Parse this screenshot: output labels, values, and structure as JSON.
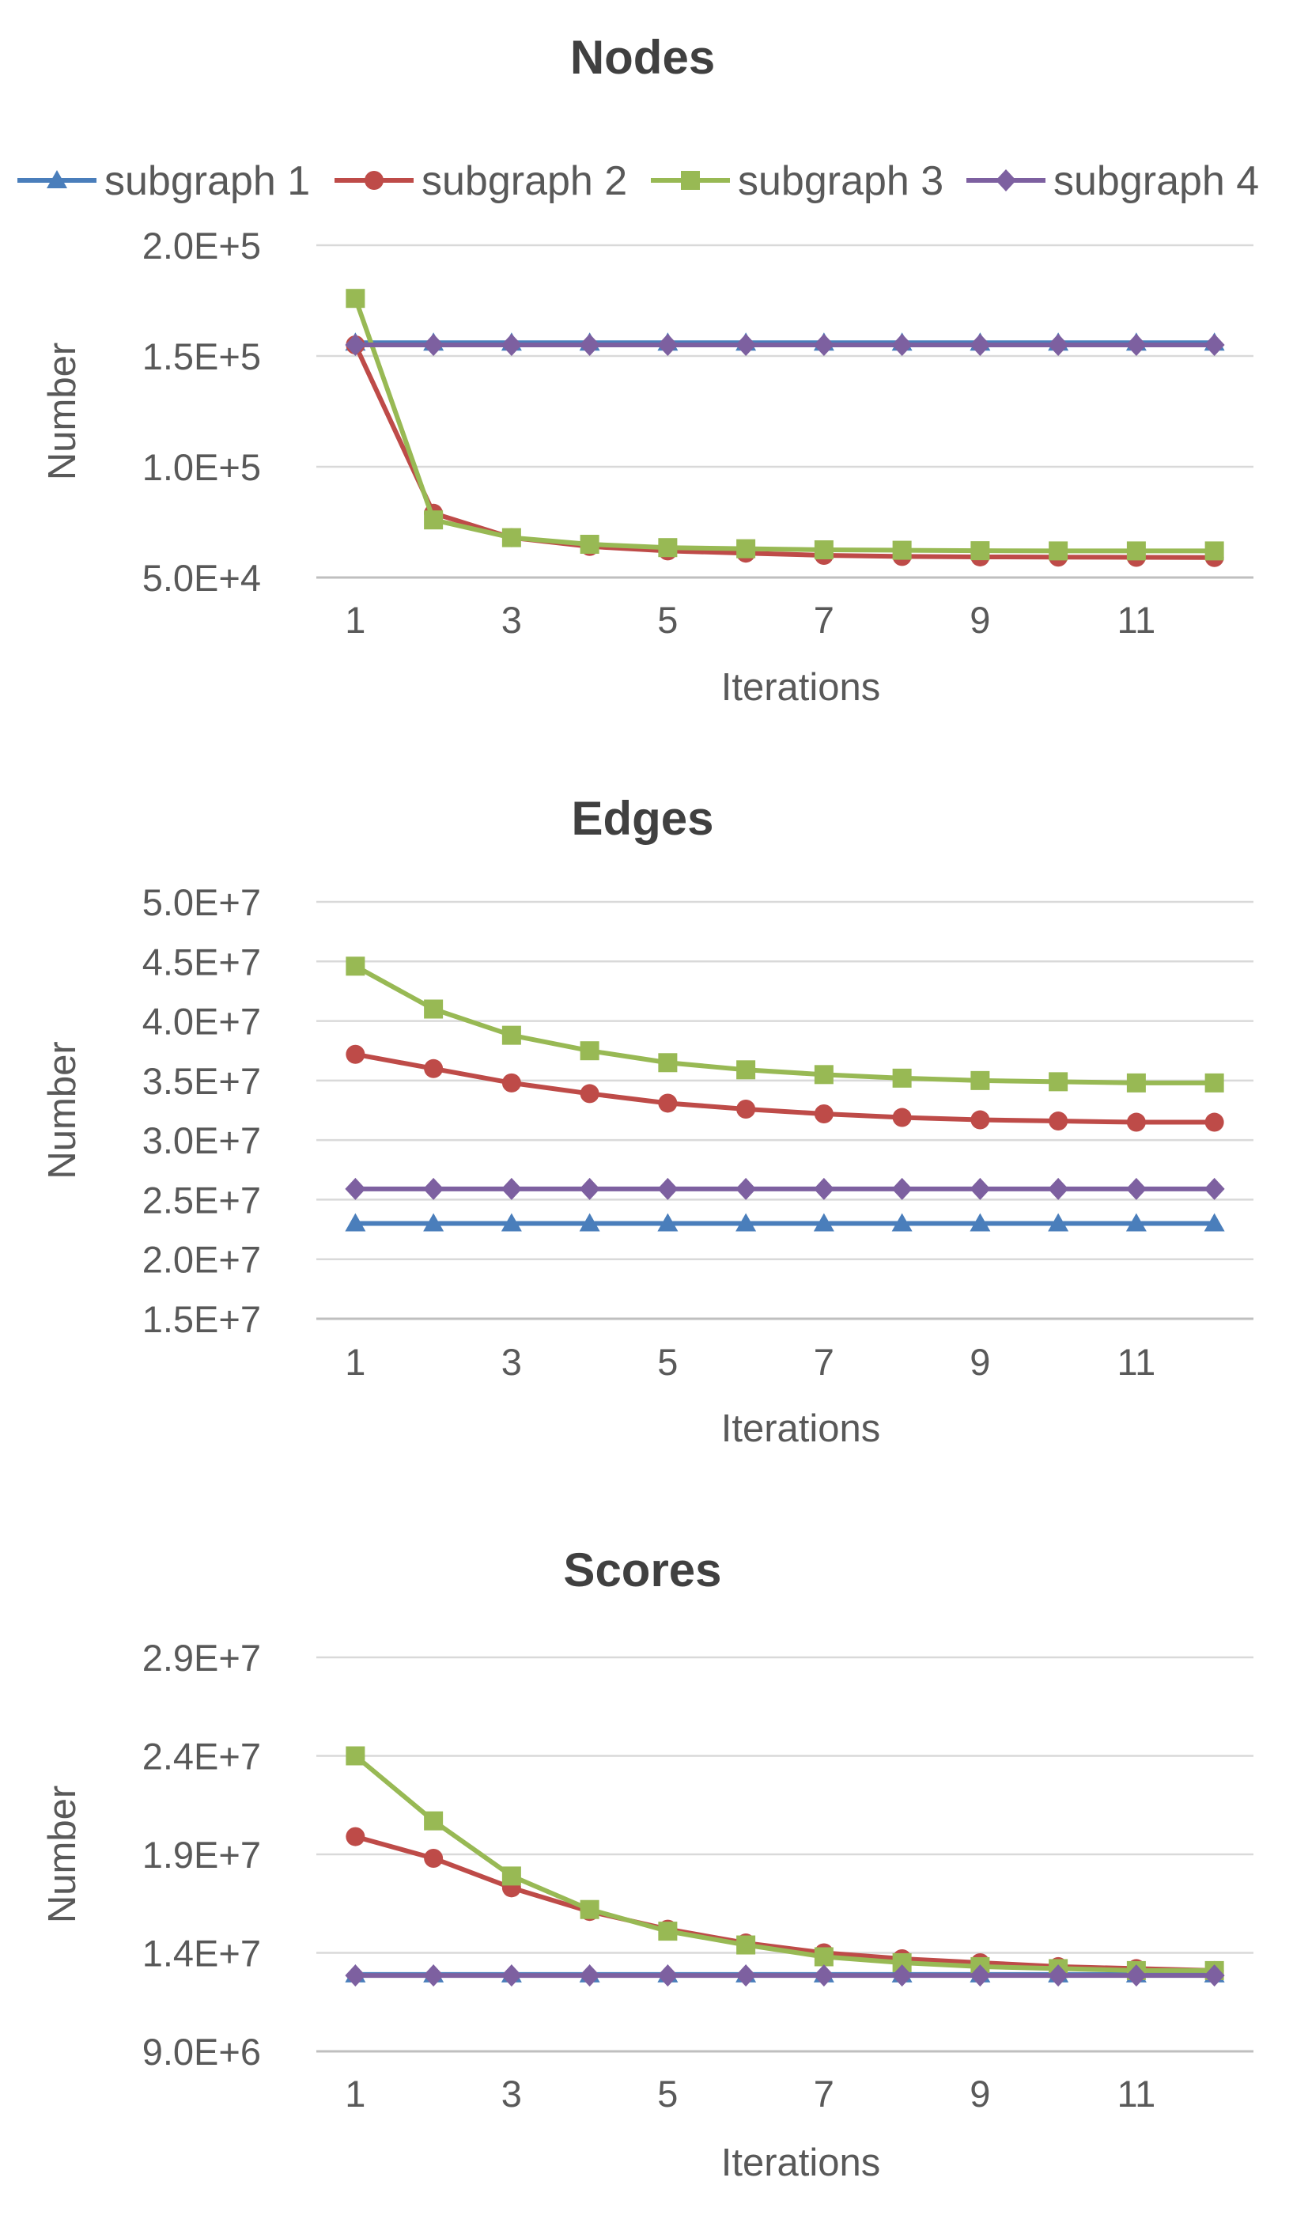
{
  "legend": {
    "items": [
      {
        "label": "subgraph 1",
        "color": "#4a7ebb",
        "marker": "triangle"
      },
      {
        "label": "subgraph 2",
        "color": "#be4b48",
        "marker": "circle"
      },
      {
        "label": "subgraph 3",
        "color": "#98b954",
        "marker": "square"
      },
      {
        "label": "subgraph 4",
        "color": "#7d60a0",
        "marker": "diamond"
      }
    ]
  },
  "chart_data": [
    {
      "type": "line",
      "title": "Nodes",
      "xlabel": "Iterations",
      "ylabel": "Number",
      "x": [
        1,
        2,
        3,
        4,
        5,
        6,
        7,
        8,
        9,
        10,
        11,
        12
      ],
      "xticks": [
        1,
        3,
        5,
        7,
        9,
        11
      ],
      "xlim": [
        0.5,
        12.5
      ],
      "ylim": [
        50000,
        200000
      ],
      "yticks": [
        50000,
        100000,
        150000,
        200000
      ],
      "ytick_labels": [
        "5.0E+4",
        "1.0E+5",
        "1.5E+5",
        "2.0E+5"
      ],
      "grid": true,
      "legend": "top",
      "series": [
        {
          "name": "subgraph 1",
          "values": [
            156000,
            156000,
            156000,
            156000,
            156000,
            156000,
            156000,
            156000,
            156000,
            156000,
            156000,
            156000
          ]
        },
        {
          "name": "subgraph 2",
          "values": [
            155000,
            79000,
            68000,
            64000,
            62000,
            61000,
            60000,
            59500,
            59300,
            59200,
            59100,
            59000
          ]
        },
        {
          "name": "subgraph 3",
          "values": [
            176000,
            76000,
            68000,
            65000,
            63500,
            63000,
            62500,
            62300,
            62100,
            62000,
            62000,
            62000
          ]
        },
        {
          "name": "subgraph 4",
          "values": [
            155000,
            155000,
            155000,
            155000,
            155000,
            155000,
            155000,
            155000,
            155000,
            155000,
            155000,
            155000
          ]
        }
      ]
    },
    {
      "type": "line",
      "title": "Edges",
      "xlabel": "Iterations",
      "ylabel": "Number",
      "x": [
        1,
        2,
        3,
        4,
        5,
        6,
        7,
        8,
        9,
        10,
        11,
        12
      ],
      "xticks": [
        1,
        3,
        5,
        7,
        9,
        11
      ],
      "xlim": [
        0.5,
        12.5
      ],
      "ylim": [
        15000000,
        50000000
      ],
      "yticks": [
        15000000,
        20000000,
        25000000,
        30000000,
        35000000,
        40000000,
        45000000,
        50000000
      ],
      "ytick_labels": [
        "1.5E+7",
        "2.0E+7",
        "2.5E+7",
        "3.0E+7",
        "3.5E+7",
        "4.0E+7",
        "4.5E+7",
        "5.0E+7"
      ],
      "grid": true,
      "series": [
        {
          "name": "subgraph 1",
          "values": [
            23000000,
            23000000,
            23000000,
            23000000,
            23000000,
            23000000,
            23000000,
            23000000,
            23000000,
            23000000,
            23000000,
            23000000
          ]
        },
        {
          "name": "subgraph 2",
          "values": [
            37200000,
            36000000,
            34800000,
            33900000,
            33100000,
            32600000,
            32200000,
            31900000,
            31700000,
            31600000,
            31500000,
            31500000
          ]
        },
        {
          "name": "subgraph 3",
          "values": [
            44600000,
            41000000,
            38800000,
            37500000,
            36500000,
            35900000,
            35500000,
            35200000,
            35000000,
            34900000,
            34800000,
            34800000
          ]
        },
        {
          "name": "subgraph 4",
          "values": [
            25900000,
            25900000,
            25900000,
            25900000,
            25900000,
            25900000,
            25900000,
            25900000,
            25900000,
            25900000,
            25900000,
            25900000
          ]
        }
      ]
    },
    {
      "type": "line",
      "title": "Scores",
      "xlabel": "Iterations",
      "ylabel": "Number",
      "x": [
        1,
        2,
        3,
        4,
        5,
        6,
        7,
        8,
        9,
        10,
        11,
        12
      ],
      "xticks": [
        1,
        3,
        5,
        7,
        9,
        11
      ],
      "xlim": [
        0.5,
        12.5
      ],
      "ylim": [
        9000000,
        29000000
      ],
      "yticks": [
        9000000,
        14000000,
        19000000,
        24000000,
        29000000
      ],
      "ytick_labels": [
        "9.0E+6",
        "1.4E+7",
        "1.9E+7",
        "2.4E+7",
        "2.9E+7"
      ],
      "grid": true,
      "series": [
        {
          "name": "subgraph 1",
          "values": [
            12900000,
            12900000,
            12900000,
            12900000,
            12900000,
            12900000,
            12900000,
            12900000,
            12900000,
            12900000,
            12900000,
            12900000
          ]
        },
        {
          "name": "subgraph 2",
          "values": [
            19900000,
            18800000,
            17300000,
            16100000,
            15200000,
            14500000,
            14000000,
            13700000,
            13500000,
            13300000,
            13200000,
            13100000
          ]
        },
        {
          "name": "subgraph 3",
          "values": [
            24000000,
            20700000,
            17900000,
            16200000,
            15100000,
            14400000,
            13800000,
            13500000,
            13300000,
            13200000,
            13100000,
            13100000
          ]
        },
        {
          "name": "subgraph 4",
          "values": [
            12850000,
            12850000,
            12850000,
            12850000,
            12850000,
            12850000,
            12850000,
            12850000,
            12850000,
            12850000,
            12850000,
            12850000
          ]
        }
      ]
    }
  ]
}
